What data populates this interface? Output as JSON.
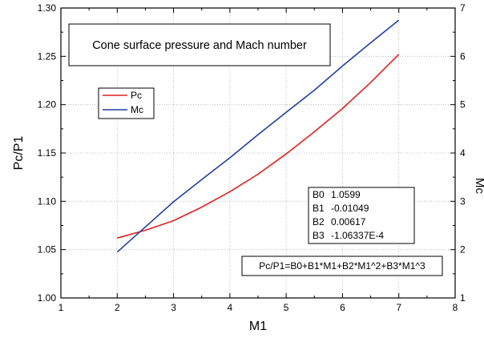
{
  "chart_data": {
    "type": "line",
    "title": "",
    "xlabel": "M1",
    "ylabel_left": "Pc/P1",
    "ylabel_right": "Mc",
    "xlim": [
      1,
      8
    ],
    "ylim_left": [
      1.0,
      1.3
    ],
    "ylim_right": [
      1,
      7
    ],
    "x_ticks": [
      "1",
      "2",
      "3",
      "4",
      "5",
      "6",
      "7",
      "8"
    ],
    "y_left_ticks": [
      "1.00",
      "1.05",
      "1.10",
      "1.15",
      "1.20",
      "1.25",
      "1.30"
    ],
    "y_right_ticks": [
      "1",
      "2",
      "3",
      "4",
      "5",
      "6",
      "7"
    ],
    "grid": true,
    "legend_position": "upper-left",
    "series": [
      {
        "name": "Pc",
        "axis": "left",
        "color": "#e02020",
        "x": [
          2.0,
          2.5,
          3.0,
          3.5,
          4.0,
          4.5,
          5.0,
          5.5,
          6.0,
          6.5,
          7.0
        ],
        "y": [
          1.062,
          1.07,
          1.08,
          1.094,
          1.11,
          1.128,
          1.149,
          1.172,
          1.196,
          1.223,
          1.252
        ]
      },
      {
        "name": "Mc",
        "axis": "right",
        "color": "#2040a0",
        "x": [
          2.0,
          2.5,
          3.0,
          3.5,
          4.0,
          4.5,
          5.0,
          5.5,
          6.0,
          6.5,
          7.0
        ],
        "y": [
          1.95,
          2.47,
          2.99,
          3.45,
          3.9,
          4.38,
          4.84,
          5.3,
          5.8,
          6.28,
          6.75
        ]
      }
    ],
    "annotations": {
      "title_box": "Cone surface pressure and Mach number",
      "coefficients": [
        {
          "label": "B0",
          "value": "1.0599"
        },
        {
          "label": "B1",
          "value": "-0.01049"
        },
        {
          "label": "B2",
          "value": "0.00617"
        },
        {
          "label": "B3",
          "value": "-1.06337E-4"
        }
      ],
      "equation": "Pc/P1=B0+B1*M1+B2*M1^2+B3*M1^3"
    }
  }
}
